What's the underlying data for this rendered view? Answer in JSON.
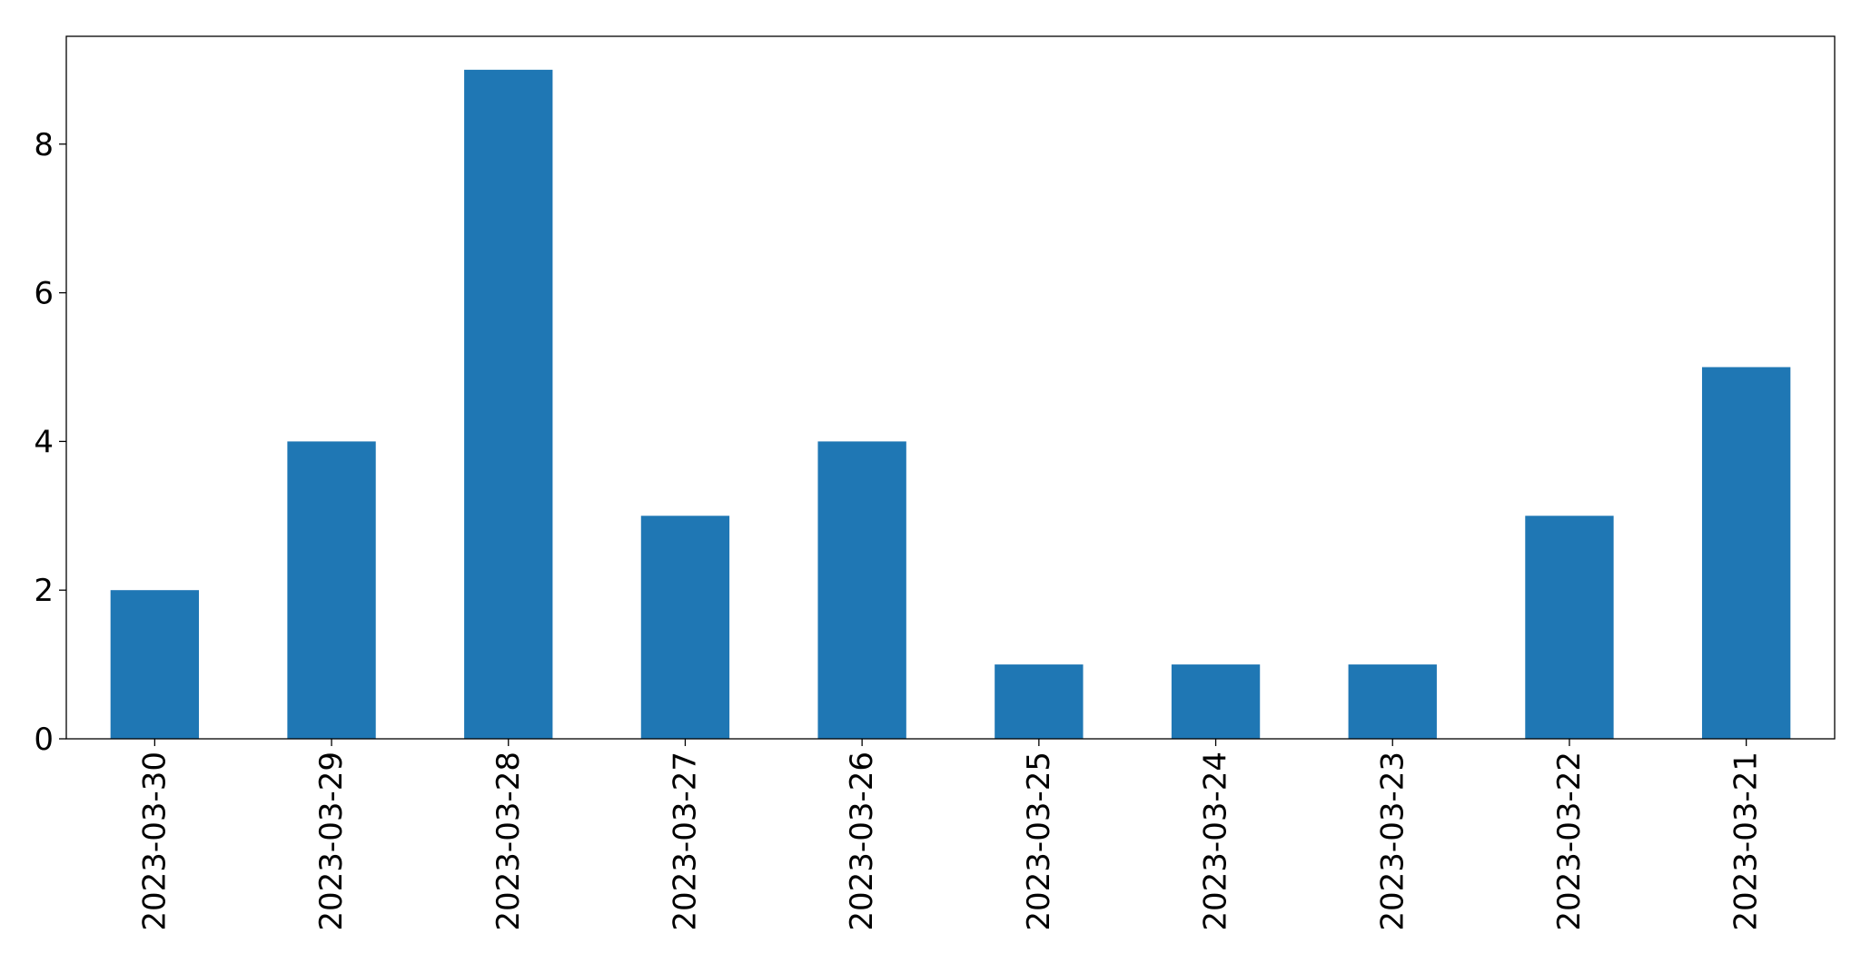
{
  "chart_data": {
    "type": "bar",
    "categories": [
      "2023-03-30",
      "2023-03-29",
      "2023-03-28",
      "2023-03-27",
      "2023-03-26",
      "2023-03-25",
      "2023-03-24",
      "2023-03-23",
      "2023-03-22",
      "2023-03-21"
    ],
    "values": [
      2,
      4,
      9,
      3,
      4,
      1,
      1,
      1,
      3,
      5
    ],
    "title": "",
    "xlabel": "",
    "ylabel": "",
    "ylim": [
      0,
      9.45
    ],
    "yticks": [
      "0",
      "2",
      "4",
      "6",
      "8"
    ],
    "grid": false,
    "legend": "none",
    "bar_color": "#1f77b4"
  }
}
